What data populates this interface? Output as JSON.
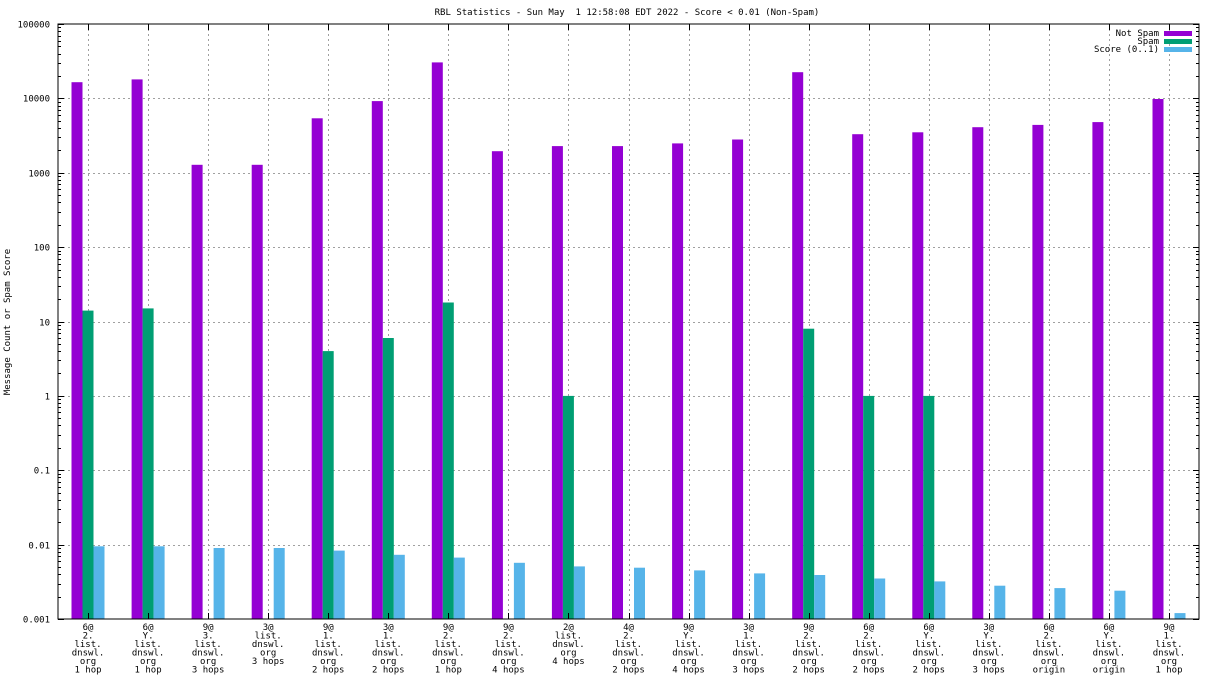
{
  "chart_data": {
    "type": "bar",
    "title": "RBL Statistics - Sun May  1 12:58:08 EDT 2022 - Score < 0.01 (Non-Spam)",
    "xlabel": "",
    "ylabel": "Message Count or Spam Score",
    "yscale": "log",
    "ylim": [
      0.001,
      100000
    ],
    "grid": true,
    "legend_position": "top-right",
    "yticks": [
      {
        "value": 0.001,
        "label": "0.001"
      },
      {
        "value": 0.01,
        "label": "0.01"
      },
      {
        "value": 0.1,
        "label": "0.1"
      },
      {
        "value": 1,
        "label": "1"
      },
      {
        "value": 10,
        "label": "10"
      },
      {
        "value": 100,
        "label": "100"
      },
      {
        "value": 1000,
        "label": "1000"
      },
      {
        "value": 10000,
        "label": "10000"
      },
      {
        "value": 100000,
        "label": "100000"
      }
    ],
    "categories": [
      [
        "6@",
        "2.",
        "list.",
        "dnswl.",
        "org",
        "1 hop"
      ],
      [
        "6@",
        "Y.",
        "list.",
        "dnswl.",
        "org",
        "1 hop"
      ],
      [
        "9@",
        "3.",
        "list.",
        "dnswl.",
        "org",
        "3 hops"
      ],
      [
        "3@",
        "list.",
        "dnswl.",
        "org",
        "3 hops"
      ],
      [
        "9@",
        "1.",
        "list.",
        "dnswl.",
        "org",
        "2 hops"
      ],
      [
        "3@",
        "1.",
        "list.",
        "dnswl.",
        "org",
        "2 hops"
      ],
      [
        "9@",
        "2.",
        "list.",
        "dnswl.",
        "org",
        "1 hop"
      ],
      [
        "9@",
        "2.",
        "list.",
        "dnswl.",
        "org",
        "4 hops"
      ],
      [
        "2@",
        "list.",
        "dnswl.",
        "org",
        "4 hops"
      ],
      [
        "4@",
        "2.",
        "list.",
        "dnswl.",
        "org",
        "2 hops"
      ],
      [
        "9@",
        "Y.",
        "list.",
        "dnswl.",
        "org",
        "4 hops"
      ],
      [
        "3@",
        "1.",
        "list.",
        "dnswl.",
        "org",
        "3 hops"
      ],
      [
        "9@",
        "2.",
        "list.",
        "dnswl.",
        "org",
        "2 hops"
      ],
      [
        "6@",
        "2.",
        "list.",
        "dnswl.",
        "org",
        "2 hops"
      ],
      [
        "6@",
        "Y.",
        "list.",
        "dnswl.",
        "org",
        "2 hops"
      ],
      [
        "3@",
        "Y.",
        "list.",
        "dnswl.",
        "org",
        "3 hops"
      ],
      [
        "6@",
        "2.",
        "list.",
        "dnswl.",
        "org",
        "origin"
      ],
      [
        "6@",
        "Y.",
        "list.",
        "dnswl.",
        "org",
        "origin"
      ],
      [
        "9@",
        "1.",
        "list.",
        "dnswl.",
        "org",
        "1 hop"
      ]
    ],
    "series": [
      {
        "name": "Not Spam",
        "color": "#9400d3",
        "values": [
          16500,
          18000,
          1280,
          1280,
          5400,
          9200,
          30500,
          1950,
          2280,
          2280,
          2480,
          2800,
          22500,
          3300,
          3500,
          4100,
          4400,
          4800,
          9800
        ]
      },
      {
        "name": "Spam",
        "color": "#009e73",
        "values": [
          14,
          15,
          null,
          null,
          4,
          6,
          18,
          null,
          1,
          null,
          null,
          null,
          8,
          1,
          1,
          null,
          null,
          null,
          null
        ]
      },
      {
        "name": "Score (0..1)",
        "color": "#56b4e9",
        "values": [
          0.0095,
          0.0095,
          0.009,
          0.009,
          0.0083,
          0.0073,
          0.0067,
          0.0057,
          0.0051,
          0.0049,
          0.0045,
          0.0041,
          0.0039,
          0.0035,
          0.0032,
          0.0028,
          0.0026,
          0.0024,
          0.0012
        ]
      }
    ]
  }
}
